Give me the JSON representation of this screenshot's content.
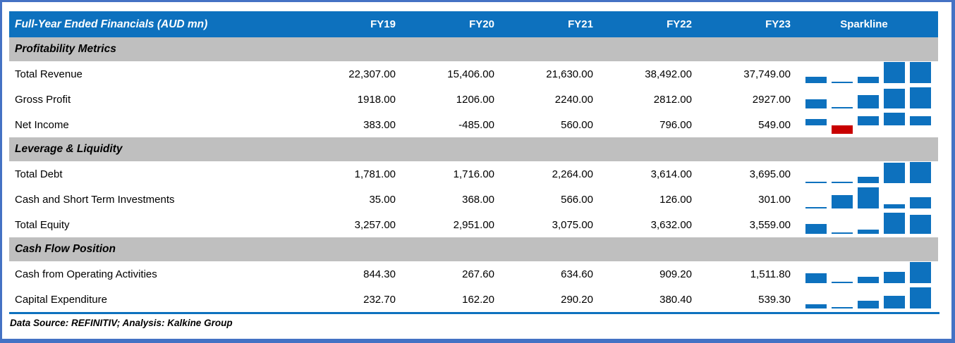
{
  "chart_data": {
    "type": "table",
    "title": "Full-Year Ended Financials (AUD mn)",
    "categories": [
      "FY19",
      "FY20",
      "FY21",
      "FY22",
      "FY23"
    ],
    "sparkline_column_label": "Sparkline",
    "sections": [
      {
        "title": "Profitability Metrics",
        "rows": [
          {
            "label": "Total Revenue",
            "values": [
              "22,307.00",
              "15,406.00",
              "21,630.00",
              "38,492.00",
              "37,749.00"
            ]
          },
          {
            "label": "Gross Profit",
            "values": [
              "1918.00",
              "1206.00",
              "2240.00",
              "2812.00",
              "2927.00"
            ]
          },
          {
            "label": "Net Income",
            "values": [
              "383.00",
              "-485.00",
              "560.00",
              "796.00",
              "549.00"
            ]
          }
        ]
      },
      {
        "title": "Leverage & Liquidity",
        "rows": [
          {
            "label": "Total Debt",
            "values": [
              "1,781.00",
              "1,716.00",
              "2,264.00",
              "3,614.00",
              "3,695.00"
            ]
          },
          {
            "label": "Cash and Short Term Investments",
            "values": [
              "35.00",
              "368.00",
              "566.00",
              "126.00",
              "301.00"
            ]
          },
          {
            "label": "Total Equity",
            "values": [
              "3,257.00",
              "2,951.00",
              "3,075.00",
              "3,632.00",
              "3,559.00"
            ]
          }
        ]
      },
      {
        "title": "Cash Flow Position",
        "rows": [
          {
            "label": "Cash from Operating Activities",
            "values": [
              "844.30",
              "267.60",
              "634.60",
              "909.20",
              "1,511.80"
            ]
          },
          {
            "label": "Capital Expenditure",
            "values": [
              "232.70",
              "162.20",
              "290.20",
              "380.40",
              "539.30"
            ]
          }
        ]
      }
    ],
    "sparkline_style": {
      "type": "bar",
      "positive_color": "#0D71BE",
      "negative_color": "#C80000"
    }
  },
  "footer": {
    "text": "Data Source: REFINITIV; Analysis: Kalkine Group"
  },
  "colors": {
    "header_bg": "#0D71BE",
    "header_text": "#FFFFFF",
    "section_bg": "#BFBFBF",
    "body_text": "#000000",
    "frame_border": "#4472C4",
    "bottom_rule": "#0D71BE"
  }
}
